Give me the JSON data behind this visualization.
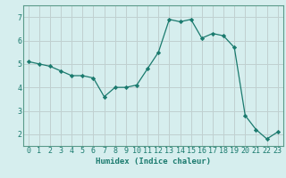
{
  "title": "",
  "xlabel": "Humidex (Indice chaleur)",
  "ylabel": "",
  "x": [
    0,
    1,
    2,
    3,
    4,
    5,
    6,
    7,
    8,
    9,
    10,
    11,
    12,
    13,
    14,
    15,
    16,
    17,
    18,
    19,
    20,
    21,
    22,
    23
  ],
  "y": [
    5.1,
    5.0,
    4.9,
    4.7,
    4.5,
    4.5,
    4.4,
    3.6,
    4.0,
    4.0,
    4.1,
    4.8,
    5.5,
    6.9,
    6.8,
    6.9,
    6.1,
    6.3,
    6.2,
    5.7,
    2.8,
    2.2,
    1.8,
    2.1
  ],
  "line_color": "#1a7a6e",
  "marker": "D",
  "marker_size": 2.2,
  "bg_color": "#d6eeee",
  "grid_color": "#c0d0d0",
  "ylim": [
    1.5,
    7.5
  ],
  "xlim": [
    -0.5,
    23.5
  ],
  "yticks": [
    2,
    3,
    4,
    5,
    6,
    7
  ],
  "xticks": [
    0,
    1,
    2,
    3,
    4,
    5,
    6,
    7,
    8,
    9,
    10,
    11,
    12,
    13,
    14,
    15,
    16,
    17,
    18,
    19,
    20,
    21,
    22,
    23
  ],
  "tick_color": "#1a7a6e",
  "label_fontsize": 6.5,
  "tick_fontsize": 6.0,
  "spine_color": "#5a9a8a"
}
